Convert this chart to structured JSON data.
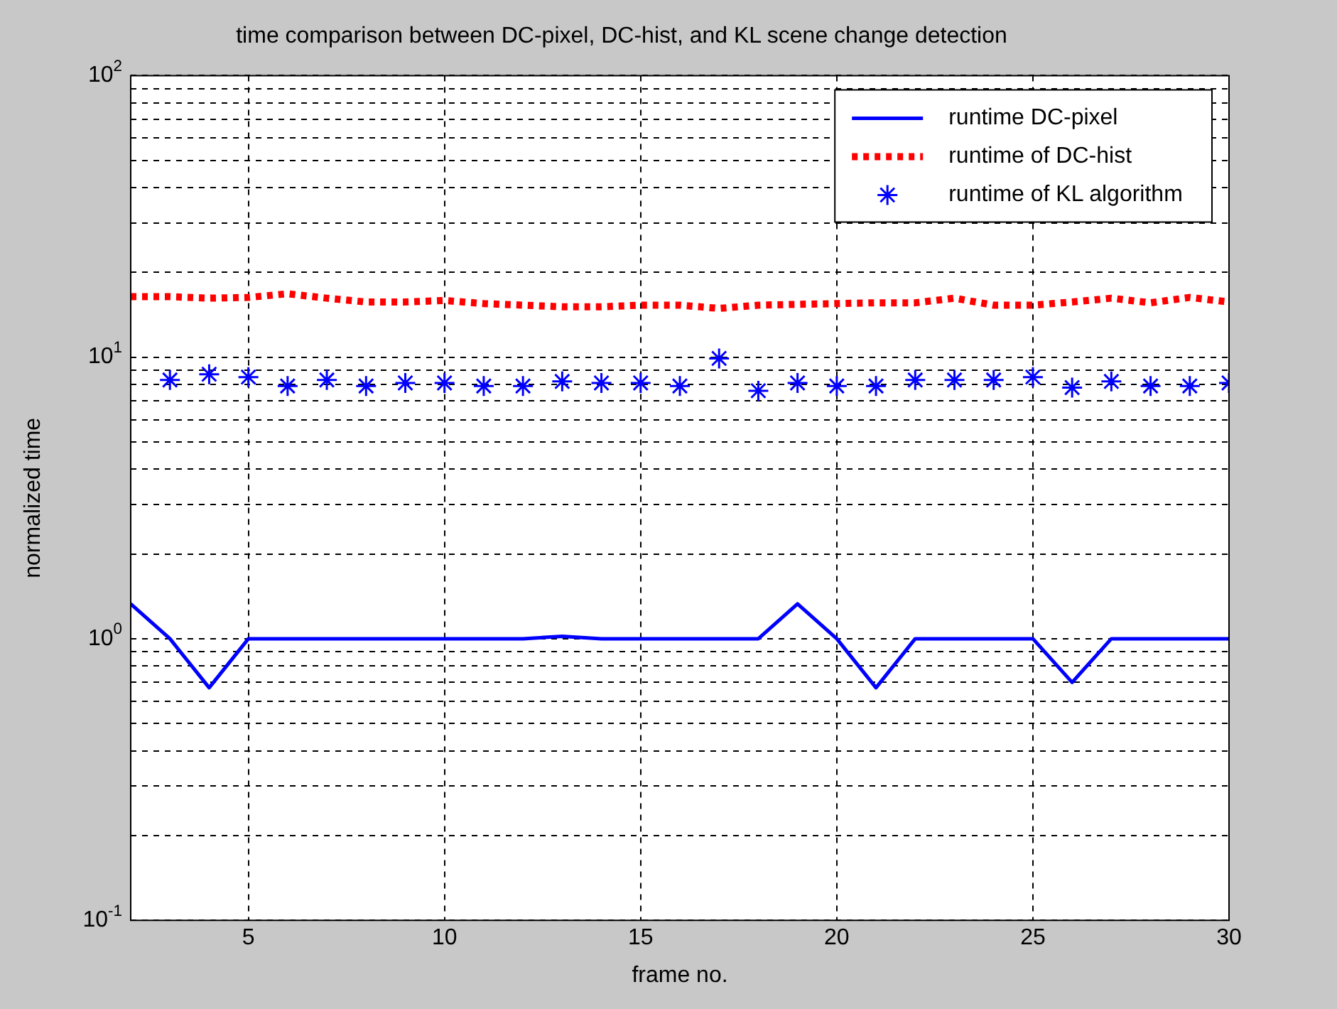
{
  "chart_data": {
    "type": "line",
    "title": "time comparison between DC-pixel, DC-hist, and KL scene change detection",
    "xlabel": "frame no.",
    "ylabel": "normalized time",
    "x": [
      2,
      3,
      4,
      5,
      6,
      7,
      8,
      9,
      10,
      11,
      12,
      13,
      14,
      15,
      16,
      17,
      18,
      19,
      20,
      21,
      22,
      23,
      24,
      25,
      26,
      27,
      28,
      29,
      30
    ],
    "series": [
      {
        "name": "runtime DC-pixel",
        "color": "#0000ff",
        "line_style": "solid",
        "marker": "none",
        "values": [
          1.33,
          1.0,
          0.67,
          1.0,
          1.0,
          1.0,
          1.0,
          1.0,
          1.0,
          1.0,
          1.0,
          1.02,
          1.0,
          1.0,
          1.0,
          1.0,
          1.0,
          1.33,
          1.0,
          0.67,
          1.0,
          1.0,
          1.0,
          1.0,
          0.7,
          1.0,
          1.0,
          1.0,
          1.0
        ]
      },
      {
        "name": "runtime of DC-hist",
        "color": "#ff0000",
        "line_style": "dotted",
        "marker": "none",
        "values": [
          16.4,
          16.4,
          16.2,
          16.3,
          16.8,
          16.2,
          15.7,
          15.7,
          15.9,
          15.5,
          15.3,
          15.1,
          15.1,
          15.3,
          15.3,
          14.9,
          15.3,
          15.4,
          15.5,
          15.6,
          15.6,
          16.2,
          15.3,
          15.3,
          15.7,
          16.2,
          15.6,
          16.3,
          15.7
        ]
      },
      {
        "name": "runtime of KL algorithm",
        "type": "scatter",
        "color": "#0000ff",
        "marker": "cross",
        "values": [
          null,
          8.3,
          8.7,
          8.5,
          7.9,
          8.3,
          7.9,
          8.1,
          8.1,
          7.9,
          7.9,
          8.2,
          8.1,
          8.1,
          7.9,
          9.9,
          7.6,
          8.1,
          7.9,
          7.9,
          8.3,
          8.3,
          8.3,
          8.5,
          7.8,
          8.2,
          7.9,
          7.9,
          8.1
        ]
      }
    ],
    "log": "y",
    "xlim": [
      2,
      30
    ],
    "xticks": [
      5,
      10,
      15,
      20,
      25,
      30
    ],
    "ylim": [
      0.1,
      100
    ],
    "yticks": [
      {
        "value": 0.1,
        "label": "10$^{-1}$"
      },
      {
        "value": 0.2,
        "label": null
      },
      {
        "value": 0.3,
        "label": null
      },
      {
        "value": 0.4,
        "label": null
      },
      {
        "value": 0.5,
        "label": null
      },
      {
        "value": 0.6,
        "label": null
      },
      {
        "value": 0.7,
        "label": null
      },
      {
        "value": 0.8,
        "label": null
      },
      {
        "value": 0.9,
        "label": null
      },
      {
        "value": 1,
        "label": "10$^{0}$"
      },
      {
        "value": 2,
        "label": null
      },
      {
        "value": 3,
        "label": null
      },
      {
        "value": 4,
        "label": null
      },
      {
        "value": 5,
        "label": null
      },
      {
        "value": 6,
        "label": null
      },
      {
        "value": 7,
        "label": null
      },
      {
        "value": 8,
        "label": null
      },
      {
        "value": 9,
        "label": null
      },
      {
        "value": 10,
        "label": "10$^{1}$"
      },
      {
        "value": 20,
        "label": null
      },
      {
        "value": 30,
        "label": null
      },
      {
        "value": 40,
        "label": null
      },
      {
        "value": 50,
        "label": null
      },
      {
        "value": 60,
        "label": null
      },
      {
        "value": 70,
        "label": null
      },
      {
        "value": 80,
        "label": null
      },
      {
        "value": 90,
        "label": null
      },
      {
        "value": 100,
        "label": "10$^{2}$"
      }
    ],
    "grid": true,
    "legend": "top right"
  }
}
